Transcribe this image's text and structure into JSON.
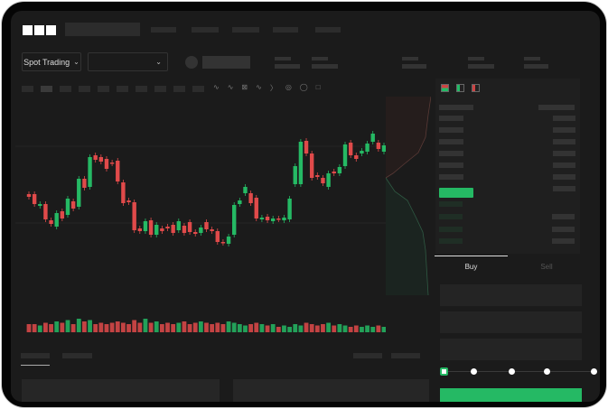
{
  "header": {
    "logo": "OKX"
  },
  "toolbar": {
    "market_type": "Spot Trading",
    "pair_selector": ""
  },
  "trade": {
    "buy_tab": "Buy",
    "sell_tab": "Sell",
    "active_tab": "Buy",
    "leverage_steps": 5,
    "leverage_selected": 0
  },
  "colors": {
    "up": "#25b964",
    "down": "#e04a4a",
    "background": "#1b1b1b",
    "frame": "#050505"
  },
  "icons": [
    "chevron-down-icon",
    "line-tool-icon",
    "ruler-icon",
    "circle-icon",
    "settings-icon",
    "fullscreen-icon",
    "orderbook-both-icon",
    "orderbook-buy-icon",
    "orderbook-sell-icon"
  ],
  "chart_data": {
    "type": "candlestick",
    "title": "",
    "xlabel": "",
    "ylabel": "",
    "grid": true,
    "candles": [
      [
        67,
        64
      ],
      [
        67,
        56
      ],
      [
        54,
        56
      ],
      [
        56,
        39
      ],
      [
        38,
        34
      ],
      [
        31,
        46
      ],
      [
        48,
        40
      ],
      [
        44,
        62
      ],
      [
        59,
        51
      ],
      [
        53,
        84
      ],
      [
        84,
        74
      ],
      [
        75,
        108
      ],
      [
        110,
        105
      ],
      [
        108,
        103
      ],
      [
        106,
        95
      ],
      [
        102,
        101
      ],
      [
        104,
        81
      ],
      [
        80,
        57
      ],
      [
        60,
        58
      ],
      [
        58,
        27
      ],
      [
        29,
        26
      ],
      [
        26,
        37
      ],
      [
        38,
        22
      ],
      [
        22,
        33
      ],
      [
        29,
        26
      ],
      [
        31,
        29
      ],
      [
        33,
        24
      ],
      [
        27,
        37
      ],
      [
        32,
        24
      ],
      [
        36,
        25
      ],
      [
        25,
        23
      ],
      [
        24,
        30
      ],
      [
        36,
        28
      ],
      [
        28,
        26
      ],
      [
        26,
        14
      ],
      [
        14,
        13
      ],
      [
        12,
        20
      ],
      [
        22,
        55
      ],
      [
        56,
        60
      ],
      [
        68,
        75
      ],
      [
        68,
        57
      ],
      [
        63,
        40
      ],
      [
        39,
        41
      ],
      [
        42,
        38
      ],
      [
        37,
        40
      ],
      [
        40,
        39
      ],
      [
        38,
        41
      ],
      [
        39,
        62
      ],
      [
        78,
        98
      ],
      [
        78,
        125
      ],
      [
        126,
        112
      ],
      [
        112,
        85
      ],
      [
        88,
        86
      ],
      [
        85,
        79
      ],
      [
        75,
        90
      ],
      [
        92,
        90
      ],
      [
        90,
        97
      ],
      [
        98,
        122
      ],
      [
        124,
        110
      ],
      [
        110,
        106
      ],
      [
        112,
        115
      ],
      [
        114,
        123
      ],
      [
        125,
        134
      ],
      [
        124,
        117
      ],
      [
        114,
        121
      ]
    ],
    "volume": [
      6,
      6,
      5,
      7,
      6,
      8,
      7,
      9,
      6,
      10,
      8,
      9,
      6,
      7,
      6,
      7,
      8,
      7,
      6,
      9,
      7,
      10,
      7,
      8,
      6,
      7,
      6,
      7,
      8,
      6,
      7,
      8,
      7,
      6,
      7,
      6,
      8,
      7,
      6,
      5,
      6,
      7,
      6,
      5,
      6,
      4,
      5,
      4,
      6,
      5,
      7,
      6,
      5,
      6,
      7,
      5,
      6,
      5,
      4,
      5,
      4,
      5,
      4,
      5,
      4
    ]
  }
}
